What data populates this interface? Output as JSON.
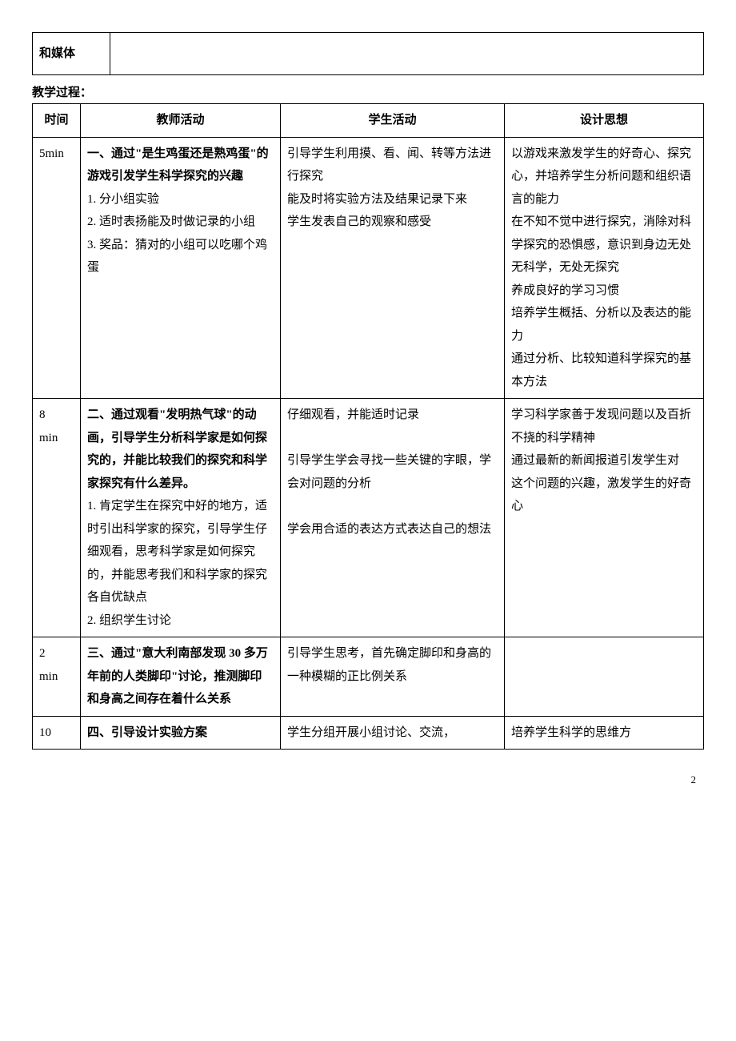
{
  "topTable": {
    "mediaLabel": "和媒体"
  },
  "sectionTitle": "教学过程：",
  "headers": {
    "time": "时间",
    "teacher": "教师活动",
    "student": "学生活动",
    "design": "设计思想"
  },
  "rows": [
    {
      "time": "5min",
      "teacher": "一、通过\"是生鸡蛋还是熟鸡蛋\"的游戏引发学生科学探究的兴趣\n1. 分小组实验\n2. 适时表扬能及时做记录的小组\n3. 奖品：猜对的小组可以吃哪个鸡蛋",
      "teacherBold": "一、通过\"是生鸡蛋还是熟鸡蛋\"的游戏引发学生科学探究的兴趣",
      "teacherRest": "1. 分小组实验\n2. 适时表扬能及时做记录的小组\n3. 奖品：猜对的小组可以吃哪个鸡蛋",
      "student": "引导学生利用摸、看、闻、转等方法进行探究\n能及时将实验方法及结果记录下来\n学生发表自己的观察和感受",
      "design": "以游戏来激发学生的好奇心、探究心，并培养学生分析问题和组织语言的能力\n在不知不觉中进行探究，消除对科学探究的恐惧感，意识到身边无处无科学，无处无探究\n养成良好的学习习惯\n培养学生概括、分析以及表达的能力\n通过分析、比较知道科学探究的基本方法"
    },
    {
      "time": "8\nmin",
      "teacherBold": "二、通过观看\"发明热气球\"的动画，引导学生分析科学家是如何探究的，并能比较我们的探究和科学家探究有什么差异。",
      "teacherRest": "1. 肯定学生在探究中好的地方，适时引出科学家的探究，引导学生仔细观看，思考科学家是如何探究的，并能思考我们和科学家的探究各自优缺点\n2. 组织学生讨论",
      "student": "仔细观看，并能适时记录\n\n引导学生学会寻找一些关键的字眼，学会对问题的分析\n\n学会用合适的表达方式表达自己的想法",
      "design": "学习科学家善于发现问题以及百折不挠的科学精神\n通过最新的新闻报道引发学生对\n这个问题的兴趣，激发学生的好奇心"
    },
    {
      "time": "2\nmin",
      "teacherBold": "三、通过\"意大利南部发现 30 多万年前的人类脚印\"讨论，推测脚印和身高之间存在着什么关系",
      "teacherRest": "",
      "student": "引导学生思考，首先确定脚印和身高的一种模糊的正比例关系",
      "design": ""
    },
    {
      "time": "10",
      "teacherBold": "四、引导设计实验方案",
      "teacherRest": "",
      "student": "学生分组开展小组讨论、交流，",
      "design": "培养学生科学的思维方"
    }
  ],
  "pageNumber": "2"
}
